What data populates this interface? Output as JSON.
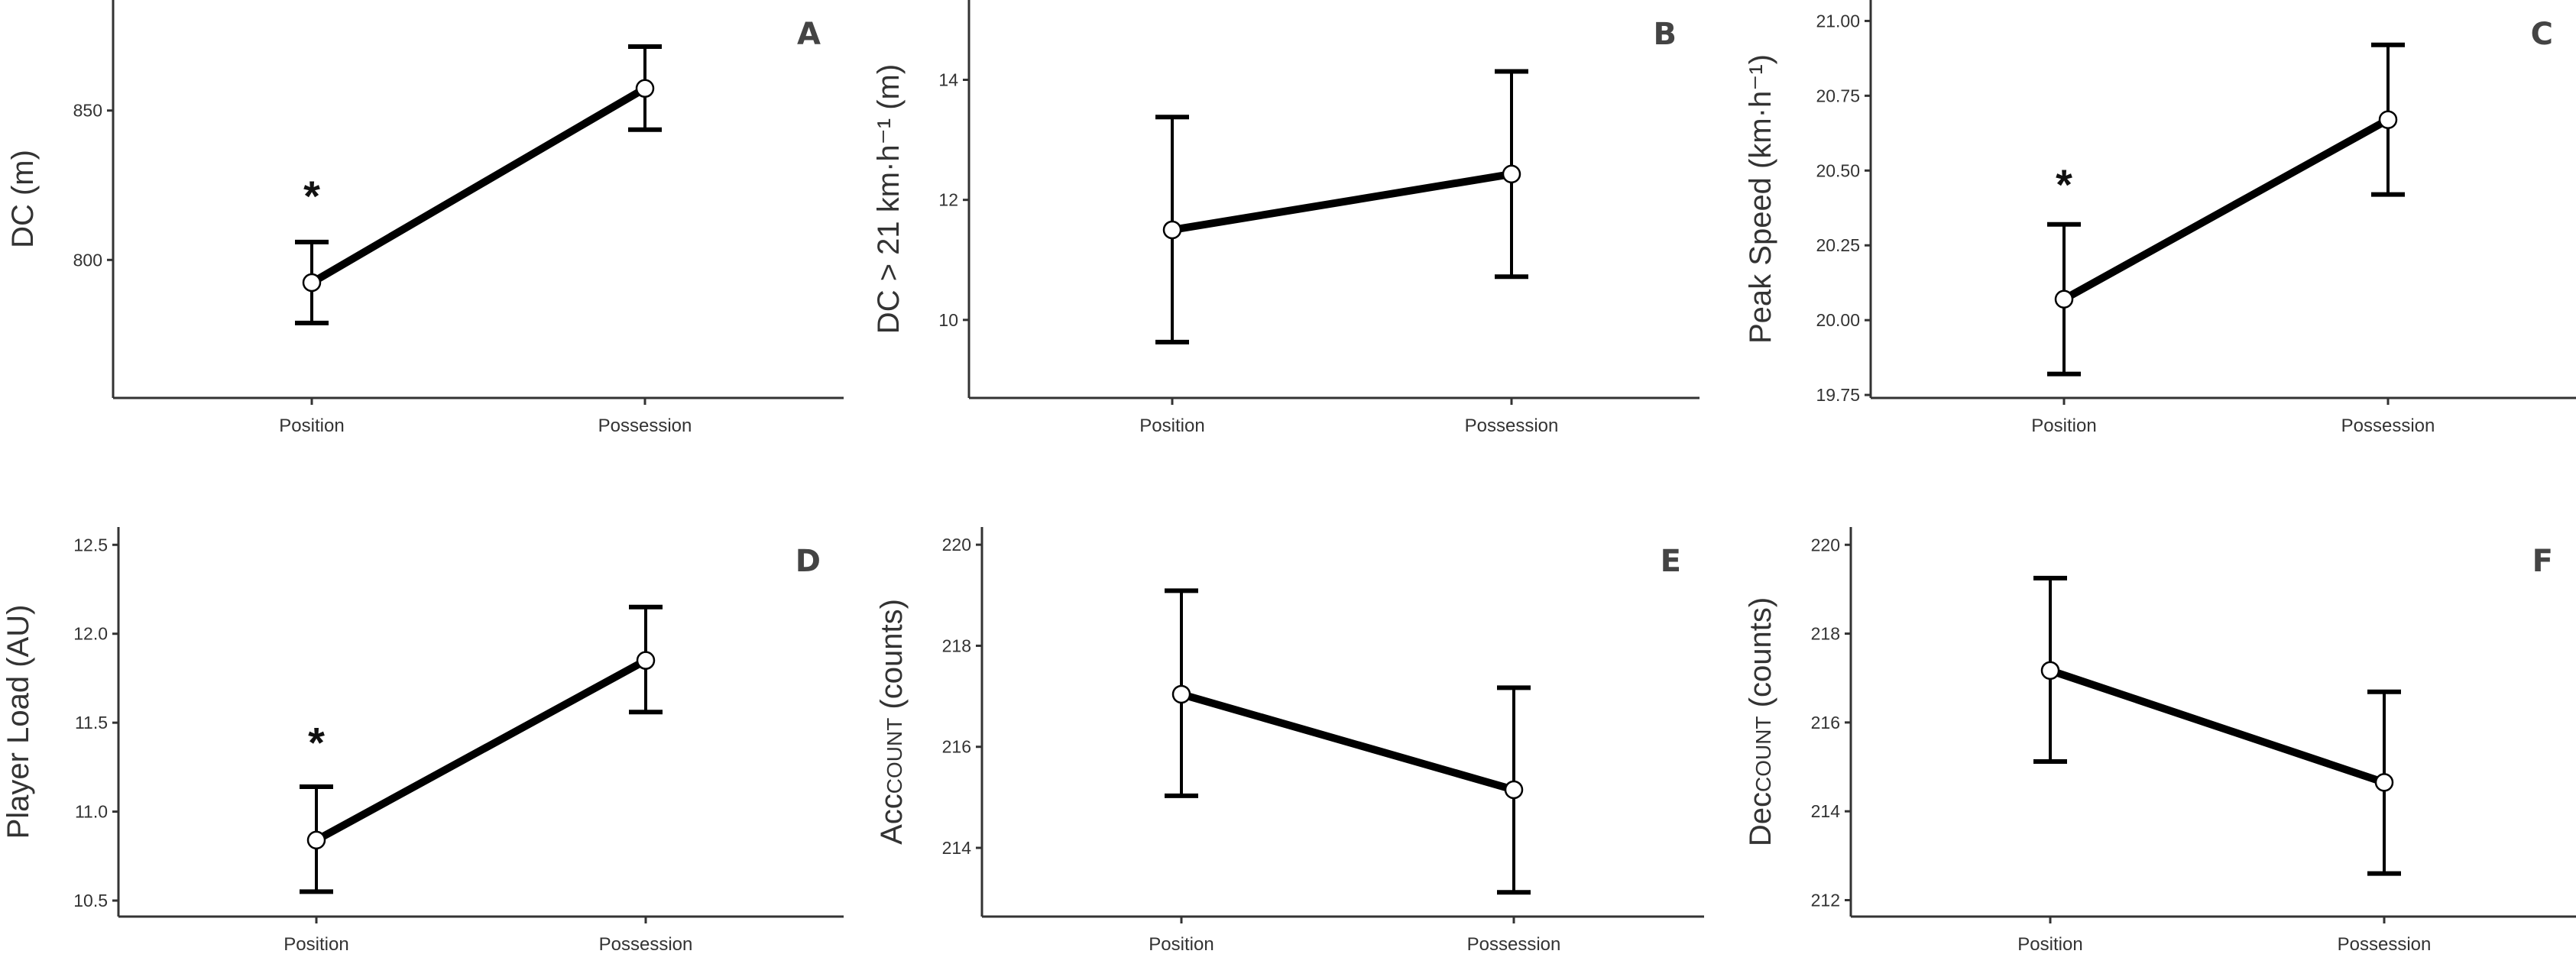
{
  "chart_data": [
    {
      "type": "line",
      "panel": "A",
      "categories": [
        "Position",
        "Possession"
      ],
      "ylabel": "DC (m)",
      "ylim": [
        753.8,
        887
      ],
      "yticks": [
        "800",
        "850"
      ],
      "values": [
        792.4,
        857.4
      ],
      "error_low": [
        778.9,
        843.6
      ],
      "error_high": [
        806.0,
        871.4
      ],
      "significance": [
        "*",
        ""
      ],
      "significance_y": 822,
      "grid": false
    },
    {
      "type": "line",
      "panel": "B",
      "categories": [
        "Position",
        "Possession"
      ],
      "ylabel": "DC > 21 km·h⁻¹ (m)",
      "ylim": [
        8.7,
        15.33
      ],
      "yticks": [
        "10",
        "12",
        "14"
      ],
      "values": [
        11.5,
        12.43
      ],
      "error_low": [
        9.63,
        10.72
      ],
      "error_high": [
        13.38,
        14.14
      ],
      "significance": [
        "",
        ""
      ],
      "grid": false
    },
    {
      "type": "line",
      "panel": "C",
      "categories": [
        "Position",
        "Possession"
      ],
      "ylabel": "Peak Speed (km·h⁻¹)",
      "ylim": [
        19.74,
        21.07
      ],
      "yticks": [
        "19.75",
        "20.00",
        "20.25",
        "20.50",
        "20.75",
        "21.00"
      ],
      "values": [
        20.07,
        20.67
      ],
      "error_low": [
        19.82,
        20.42
      ],
      "error_high": [
        20.32,
        20.92
      ],
      "significance": [
        "*",
        ""
      ],
      "significance_y": 20.46,
      "grid": false
    },
    {
      "type": "line",
      "panel": "D",
      "categories": [
        "Position",
        "Possession"
      ],
      "ylabel": "Player Load (AU)",
      "ylim": [
        10.41,
        12.6
      ],
      "yticks": [
        "10.5",
        "11.0",
        "11.5",
        "12.0",
        "12.5"
      ],
      "values": [
        10.84,
        11.85
      ],
      "error_low": [
        10.55,
        11.56
      ],
      "error_high": [
        11.14,
        12.15
      ],
      "significance": [
        "*",
        ""
      ],
      "significance_y": 11.4,
      "grid": false
    },
    {
      "type": "line",
      "panel": "E",
      "categories": [
        "Position",
        "Possession"
      ],
      "ylabel": "Acc",
      "ylabel_sub": "COUNT",
      "ylabel_unit": " (counts)",
      "ylim": [
        212.64,
        220.35
      ],
      "yticks": [
        "214",
        "216",
        "218",
        "220"
      ],
      "values": [
        217.04,
        215.15
      ],
      "error_low": [
        215.03,
        213.12
      ],
      "error_high": [
        219.09,
        217.17
      ],
      "significance": [
        "",
        ""
      ],
      "grid": false
    },
    {
      "type": "line",
      "panel": "F",
      "categories": [
        "Position",
        "Possession"
      ],
      "ylabel": "Dec",
      "ylabel_sub": "COUNT",
      "ylabel_unit": " (counts)",
      "ylim": [
        211.63,
        220.4
      ],
      "yticks": [
        "212",
        "214",
        "216",
        "218",
        "220"
      ],
      "values": [
        217.17,
        214.65
      ],
      "error_low": [
        215.12,
        212.6
      ],
      "error_high": [
        219.25,
        216.69
      ],
      "significance": [
        "",
        ""
      ],
      "grid": false
    }
  ],
  "colors": {
    "line": "#000000",
    "marker_fill": "#ffffff",
    "axis": "#333333",
    "panel_letter": "#444444"
  }
}
